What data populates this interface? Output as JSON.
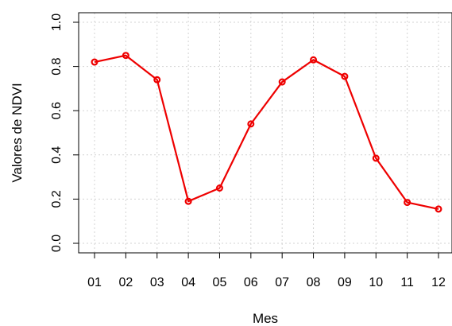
{
  "chart_data": {
    "type": "line",
    "title": "",
    "xlabel": "Mes",
    "ylabel": "Valores de NDVI",
    "categories": [
      "01",
      "02",
      "03",
      "04",
      "05",
      "06",
      "07",
      "08",
      "09",
      "10",
      "11",
      "12"
    ],
    "series": [
      {
        "values": [
          0.82,
          0.85,
          0.74,
          0.19,
          0.25,
          0.54,
          0.73,
          0.83,
          0.755,
          0.385,
          0.185,
          0.155
        ],
        "color": "#ee0000",
        "marker": "open-circle"
      }
    ],
    "yticks": [
      "0.0",
      "0.2",
      "0.4",
      "0.6",
      "0.8",
      "1.0"
    ],
    "ylim": [
      0,
      1
    ],
    "grid": true,
    "grid_color": "#d3d3d3",
    "legend": "none"
  }
}
